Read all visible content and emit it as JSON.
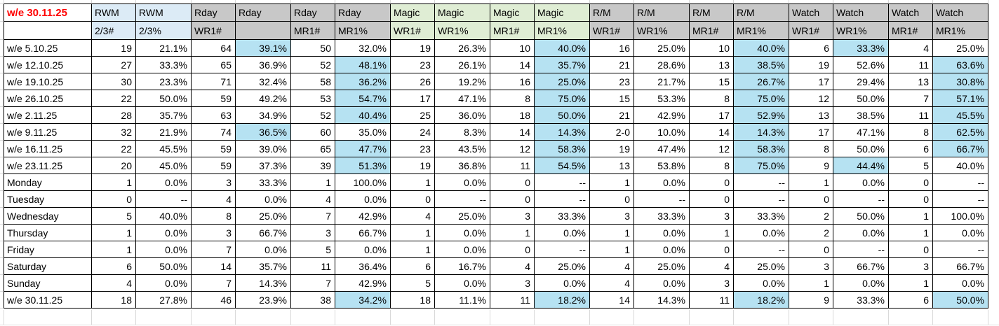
{
  "sheet": {
    "report_title": "w/e 30.11.25",
    "header_groups": [
      {
        "label": "RWM",
        "span": 2,
        "color": "blue"
      },
      {
        "label": "Rday",
        "span": 4,
        "color": "gray"
      },
      {
        "label": "Magic",
        "span": 4,
        "color": "green"
      },
      {
        "label": "R/M",
        "span": 4,
        "color": "gray"
      },
      {
        "label": "Watch",
        "span": 4,
        "color": "gray"
      }
    ],
    "sub_headers": [
      "2/3#",
      "2/3%",
      "WR1#",
      "",
      "MR1#",
      "MR1%",
      "WR1#",
      "WR1%",
      "MR1#",
      "MR1%",
      "WR1#",
      "WR1%",
      "MR1#",
      "MR1%",
      "WR1#",
      "WR1%",
      "MR1#",
      "MR1%"
    ],
    "rows": [
      {
        "label": "w/e 5.10.25",
        "values": [
          "19",
          "21.1%",
          "64",
          "39.1%",
          "50",
          "32.0%",
          "19",
          "26.3%",
          "10",
          "40.0%",
          "16",
          "25.0%",
          "10",
          "40.0%",
          "6",
          "33.3%",
          "4",
          "25.0%"
        ],
        "highlights": [
          3,
          9,
          13,
          15
        ]
      },
      {
        "label": "w/e 12.10.25",
        "values": [
          "27",
          "33.3%",
          "65",
          "36.9%",
          "52",
          "48.1%",
          "23",
          "26.1%",
          "14",
          "35.7%",
          "21",
          "28.6%",
          "13",
          "38.5%",
          "19",
          "52.6%",
          "11",
          "63.6%"
        ],
        "highlights": [
          5,
          9,
          13,
          17
        ]
      },
      {
        "label": "w/e 19.10.25",
        "values": [
          "30",
          "23.3%",
          "71",
          "32.4%",
          "58",
          "36.2%",
          "26",
          "19.2%",
          "16",
          "25.0%",
          "23",
          "21.7%",
          "15",
          "26.7%",
          "17",
          "29.4%",
          "13",
          "30.8%"
        ],
        "highlights": [
          5,
          9,
          13,
          17
        ]
      },
      {
        "label": "w/e 26.10.25",
        "values": [
          "22",
          "50.0%",
          "59",
          "49.2%",
          "53",
          "54.7%",
          "17",
          "47.1%",
          "8",
          "75.0%",
          "15",
          "53.3%",
          "8",
          "75.0%",
          "12",
          "50.0%",
          "7",
          "57.1%"
        ],
        "highlights": [
          5,
          9,
          13,
          17
        ]
      },
      {
        "label": "w/e 2.11.25",
        "values": [
          "28",
          "35.7%",
          "63",
          "34.9%",
          "52",
          "40.4%",
          "25",
          "36.0%",
          "18",
          "50.0%",
          "21",
          "42.9%",
          "17",
          "52.9%",
          "13",
          "38.5%",
          "11",
          "45.5%"
        ],
        "highlights": [
          5,
          9,
          13,
          17
        ]
      },
      {
        "label": "w/e 9.11.25",
        "values": [
          "32",
          "21.9%",
          "74",
          "36.5%",
          "60",
          "35.0%",
          "24",
          "8.3%",
          "14",
          "14.3%",
          "2-0",
          "10.0%",
          "14",
          "14.3%",
          "17",
          "47.1%",
          "8",
          "62.5%"
        ],
        "highlights": [
          3,
          9,
          13,
          17
        ]
      },
      {
        "label": "w/e 16.11.25",
        "values": [
          "22",
          "45.5%",
          "59",
          "39.0%",
          "65",
          "47.7%",
          "23",
          "43.5%",
          "12",
          "58.3%",
          "19",
          "47.4%",
          "12",
          "58.3%",
          "8",
          "50.0%",
          "6",
          "66.7%"
        ],
        "highlights": [
          5,
          9,
          13,
          17
        ]
      },
      {
        "label": "w/e 23.11.25",
        "values": [
          "20",
          "45.0%",
          "59",
          "37.3%",
          "39",
          "51.3%",
          "19",
          "36.8%",
          "11",
          "54.5%",
          "13",
          "53.8%",
          "8",
          "75.0%",
          "9",
          "44.4%",
          "5",
          "40.0%"
        ],
        "highlights": [
          5,
          9,
          13,
          15
        ]
      },
      {
        "label": "Monday",
        "values": [
          "1",
          "0.0%",
          "3",
          "33.3%",
          "1",
          "100.0%",
          "1",
          "0.0%",
          "0",
          "--",
          "1",
          "0.0%",
          "0",
          "--",
          "1",
          "0.0%",
          "0",
          "--"
        ],
        "highlights": []
      },
      {
        "label": "Tuesday",
        "values": [
          "0",
          "--",
          "4",
          "0.0%",
          "4",
          "0.0%",
          "0",
          "--",
          "0",
          "--",
          "0",
          "--",
          "0",
          "--",
          "0",
          "--",
          "0",
          "--"
        ],
        "highlights": []
      },
      {
        "label": "Wednesday",
        "values": [
          "5",
          "40.0%",
          "8",
          "25.0%",
          "7",
          "42.9%",
          "4",
          "25.0%",
          "3",
          "33.3%",
          "3",
          "33.3%",
          "3",
          "33.3%",
          "2",
          "50.0%",
          "1",
          "100.0%"
        ],
        "highlights": []
      },
      {
        "label": "Thursday",
        "values": [
          "1",
          "0.0%",
          "3",
          "66.7%",
          "3",
          "66.7%",
          "1",
          "0.0%",
          "1",
          "0.0%",
          "1",
          "0.0%",
          "1",
          "0.0%",
          "2",
          "0.0%",
          "1",
          "0.0%"
        ],
        "highlights": []
      },
      {
        "label": "Friday",
        "values": [
          "1",
          "0.0%",
          "7",
          "0.0%",
          "5",
          "0.0%",
          "1",
          "0.0%",
          "0",
          "--",
          "1",
          "0.0%",
          "0",
          "--",
          "0",
          "--",
          "0",
          "--"
        ],
        "highlights": []
      },
      {
        "label": "Saturday",
        "values": [
          "6",
          "50.0%",
          "14",
          "35.7%",
          "11",
          "36.4%",
          "6",
          "16.7%",
          "4",
          "25.0%",
          "4",
          "25.0%",
          "4",
          "25.0%",
          "3",
          "66.7%",
          "3",
          "66.7%"
        ],
        "highlights": []
      },
      {
        "label": "Sunday",
        "values": [
          "4",
          "0.0%",
          "7",
          "14.3%",
          "7",
          "42.9%",
          "5",
          "0.0%",
          "3",
          "0.0%",
          "4",
          "0.0%",
          "3",
          "0.0%",
          "1",
          "0.0%",
          "1",
          "0.0%"
        ],
        "highlights": []
      },
      {
        "label": "w/e 30.11.25",
        "values": [
          "18",
          "27.8%",
          "46",
          "23.9%",
          "38",
          "34.2%",
          "18",
          "11.1%",
          "11",
          "18.2%",
          "14",
          "14.3%",
          "11",
          "18.2%",
          "9",
          "33.3%",
          "6",
          "50.0%"
        ],
        "highlights": [
          5,
          9,
          13,
          17
        ]
      }
    ],
    "colors": {
      "title_red": "#FF0000",
      "header_blue": "#DCEBF6",
      "header_gray": "#C8C8C8",
      "header_green": "#DFEDD4",
      "highlight_blue": "#B6E2F2",
      "grid_border_black": "#000000",
      "gridline_stub_gray": "#D9D9D9"
    }
  }
}
